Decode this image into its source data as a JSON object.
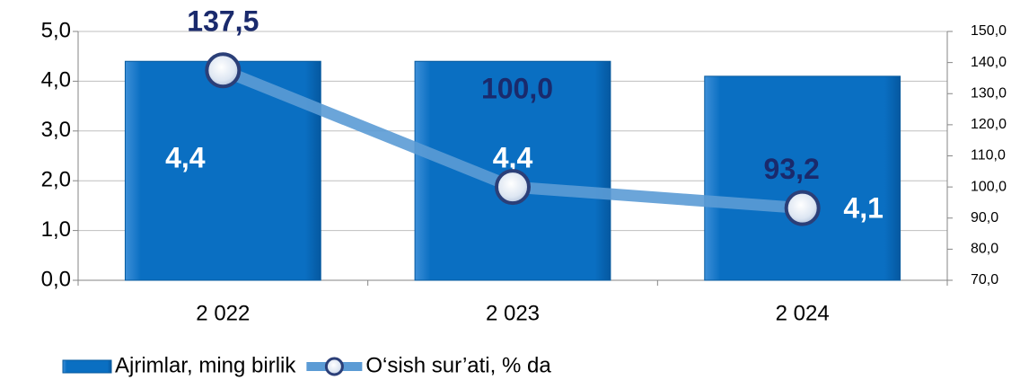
{
  "chart_data": {
    "type": "bar",
    "categories": [
      "2 022",
      "2 023",
      "2 024"
    ],
    "series": [
      {
        "name": "Ajrimlar, ming birlik",
        "type": "bar",
        "color": "#0a6fc2",
        "values": [
          4.4,
          4.4,
          4.1
        ],
        "value_labels": [
          "4,4",
          "4,4",
          "4,1"
        ]
      },
      {
        "name": "O‘sish sur’ati, % da",
        "type": "line",
        "axis": "y2",
        "color": "#5b9bd5",
        "values": [
          137.5,
          100.0,
          93.2
        ],
        "value_labels": [
          "137,5",
          "100,0",
          "93,2"
        ]
      }
    ],
    "ylim": [
      0,
      5
    ],
    "yticks": [
      {
        "value": 0,
        "label": "0,0"
      },
      {
        "value": 1,
        "label": "1,0"
      },
      {
        "value": 2,
        "label": "2,0"
      },
      {
        "value": 3,
        "label": "3,0"
      },
      {
        "value": 4,
        "label": "4,0"
      },
      {
        "value": 5,
        "label": "5,0"
      }
    ],
    "y2lim": [
      70,
      150
    ],
    "y2ticks": [
      {
        "value": 70,
        "label": "70,0"
      },
      {
        "value": 80,
        "label": "80,0"
      },
      {
        "value": 90,
        "label": "90,0"
      },
      {
        "value": 100,
        "label": "100,0"
      },
      {
        "value": 110,
        "label": "110,0"
      },
      {
        "value": 120,
        "label": "120,0"
      },
      {
        "value": 130,
        "label": "130,0"
      },
      {
        "value": 140,
        "label": "140,0"
      },
      {
        "value": 150,
        "label": "150,0"
      }
    ],
    "grid": true,
    "legend": "bottom"
  }
}
